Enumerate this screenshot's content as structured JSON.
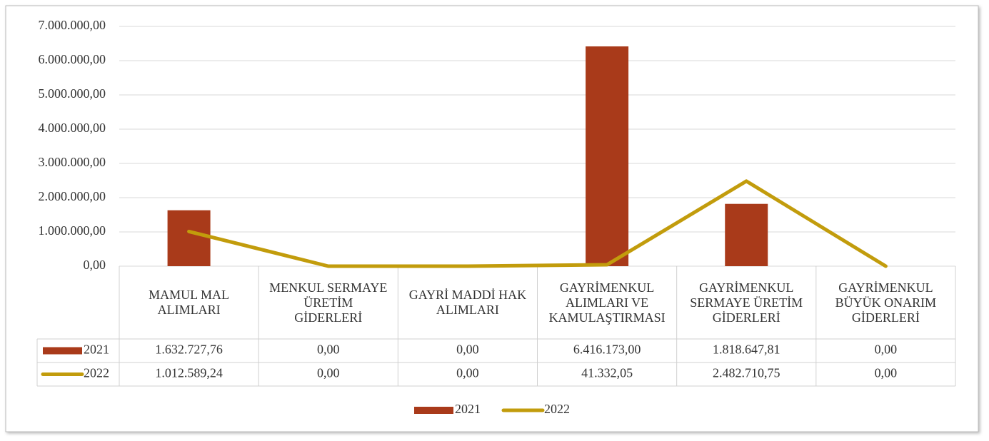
{
  "chart_data": {
    "type": "bar",
    "categories": [
      "MAMUL MAL ALIMLARI",
      "MENKUL SERMAYE ÜRETİM GİDERLERİ",
      "GAYRİ MADDİ HAK ALIMLARI",
      "GAYRİMENKUL ALIMLARI VE KAMULAŞTIRMASI",
      "GAYRİMENKUL SERMAYE ÜRETİM GİDERLERİ",
      "GAYRİMENKUL BÜYÜK ONARIM GİDERLERİ"
    ],
    "series": [
      {
        "name": "2021",
        "type": "bar",
        "color": "#a93a1a",
        "values": [
          1632727.76,
          0,
          0,
          6416173,
          1818647.81,
          0
        ],
        "value_labels": [
          "1.632.727,76",
          "0,00",
          "0,00",
          "6.416.173,00",
          "1.818.647,81",
          "0,00"
        ]
      },
      {
        "name": "2022",
        "type": "line",
        "color": "#c29c0c",
        "values": [
          1012589.24,
          0,
          0,
          41332.05,
          2482710.75,
          0
        ],
        "value_labels": [
          "1.012.589,24",
          "0,00",
          "0,00",
          "41.332,05",
          "2.482.710,75",
          "0,00"
        ]
      }
    ],
    "ylim": [
      0,
      7000000
    ],
    "yticks": [
      {
        "value": 0,
        "label": "0,00"
      },
      {
        "value": 1000000,
        "label": "1.000.000,00"
      },
      {
        "value": 2000000,
        "label": "2.000.000,00"
      },
      {
        "value": 3000000,
        "label": "3.000.000,00"
      },
      {
        "value": 4000000,
        "label": "4.000.000,00"
      },
      {
        "value": 5000000,
        "label": "5.000.000,00"
      },
      {
        "value": 6000000,
        "label": "6.000.000,00"
      },
      {
        "value": 7000000,
        "label": "7.000.000,00"
      }
    ],
    "grid": true,
    "legend": "bottom"
  }
}
